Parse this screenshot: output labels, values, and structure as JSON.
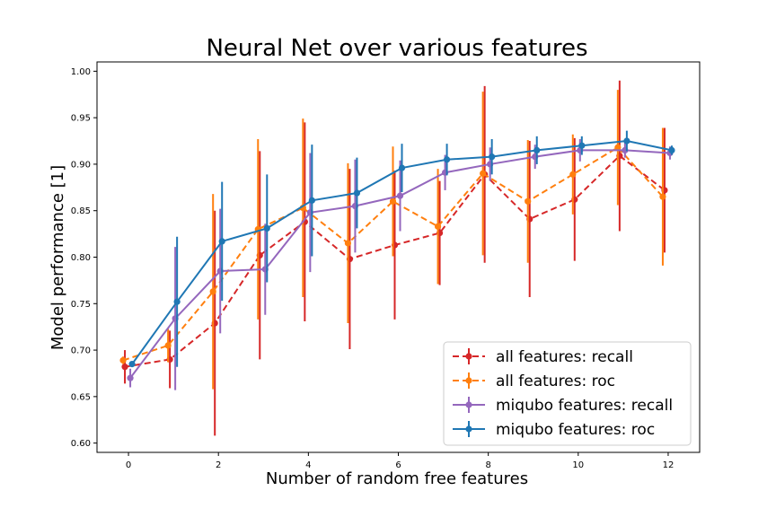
{
  "chart_data": {
    "type": "line",
    "title": "Neural Net over various features",
    "xlabel": "Number of random free features",
    "ylabel": "Model performance [1]",
    "xlim": [
      -0.7,
      12.7
    ],
    "ylim": [
      0.59,
      1.01
    ],
    "xticks": [
      "0",
      "2",
      "4",
      "6",
      "8",
      "10",
      "12"
    ],
    "yticks": [
      "0.60",
      "0.65",
      "0.70",
      "0.75",
      "0.80",
      "0.85",
      "0.90",
      "0.95",
      "1.00"
    ],
    "x": [
      0,
      1,
      2,
      3,
      4,
      5,
      6,
      7,
      8,
      9,
      10,
      11,
      12
    ],
    "legend_position": "lower-right",
    "grid": false,
    "series": [
      {
        "name": "all features: recall",
        "color": "#d62728",
        "dashed": true,
        "offset": -0.08,
        "values": [
          0.682,
          0.69,
          0.729,
          0.802,
          0.838,
          0.798,
          0.813,
          0.826,
          0.889,
          0.841,
          0.862,
          0.909,
          0.872
        ],
        "errors": [
          0.018,
          0.031,
          0.121,
          0.112,
          0.107,
          0.097,
          0.08,
          0.056,
          0.095,
          0.084,
          0.066,
          0.081,
          0.067
        ]
      },
      {
        "name": "all features: roc",
        "color": "#ff7f0e",
        "dashed": true,
        "offset": -0.12,
        "values": [
          0.689,
          0.705,
          0.763,
          0.83,
          0.853,
          0.815,
          0.86,
          0.833,
          0.89,
          0.86,
          0.889,
          0.918,
          0.865
        ],
        "errors": [
          0.004,
          0.018,
          0.105,
          0.097,
          0.096,
          0.086,
          0.059,
          0.062,
          0.088,
          0.066,
          0.043,
          0.062,
          0.074
        ]
      },
      {
        "name": "miqubo features: recall",
        "color": "#9467bd",
        "dashed": false,
        "offset": 0.04,
        "values": [
          0.67,
          0.734,
          0.785,
          0.787,
          0.848,
          0.855,
          0.866,
          0.891,
          0.9,
          0.908,
          0.915,
          0.915,
          0.912
        ],
        "errors": [
          0.01,
          0.077,
          0.067,
          0.049,
          0.064,
          0.05,
          0.038,
          0.019,
          0.018,
          0.013,
          0.012,
          0.008,
          0.007
        ]
      },
      {
        "name": "miqubo features: roc",
        "color": "#1f77b4",
        "dashed": false,
        "offset": 0.08,
        "values": [
          0.685,
          0.752,
          0.817,
          0.831,
          0.861,
          0.869,
          0.896,
          0.905,
          0.908,
          0.915,
          0.92,
          0.925,
          0.915
        ],
        "errors": [
          0.003,
          0.07,
          0.064,
          0.058,
          0.06,
          0.038,
          0.026,
          0.017,
          0.019,
          0.015,
          0.01,
          0.011,
          0.005
        ]
      }
    ]
  }
}
